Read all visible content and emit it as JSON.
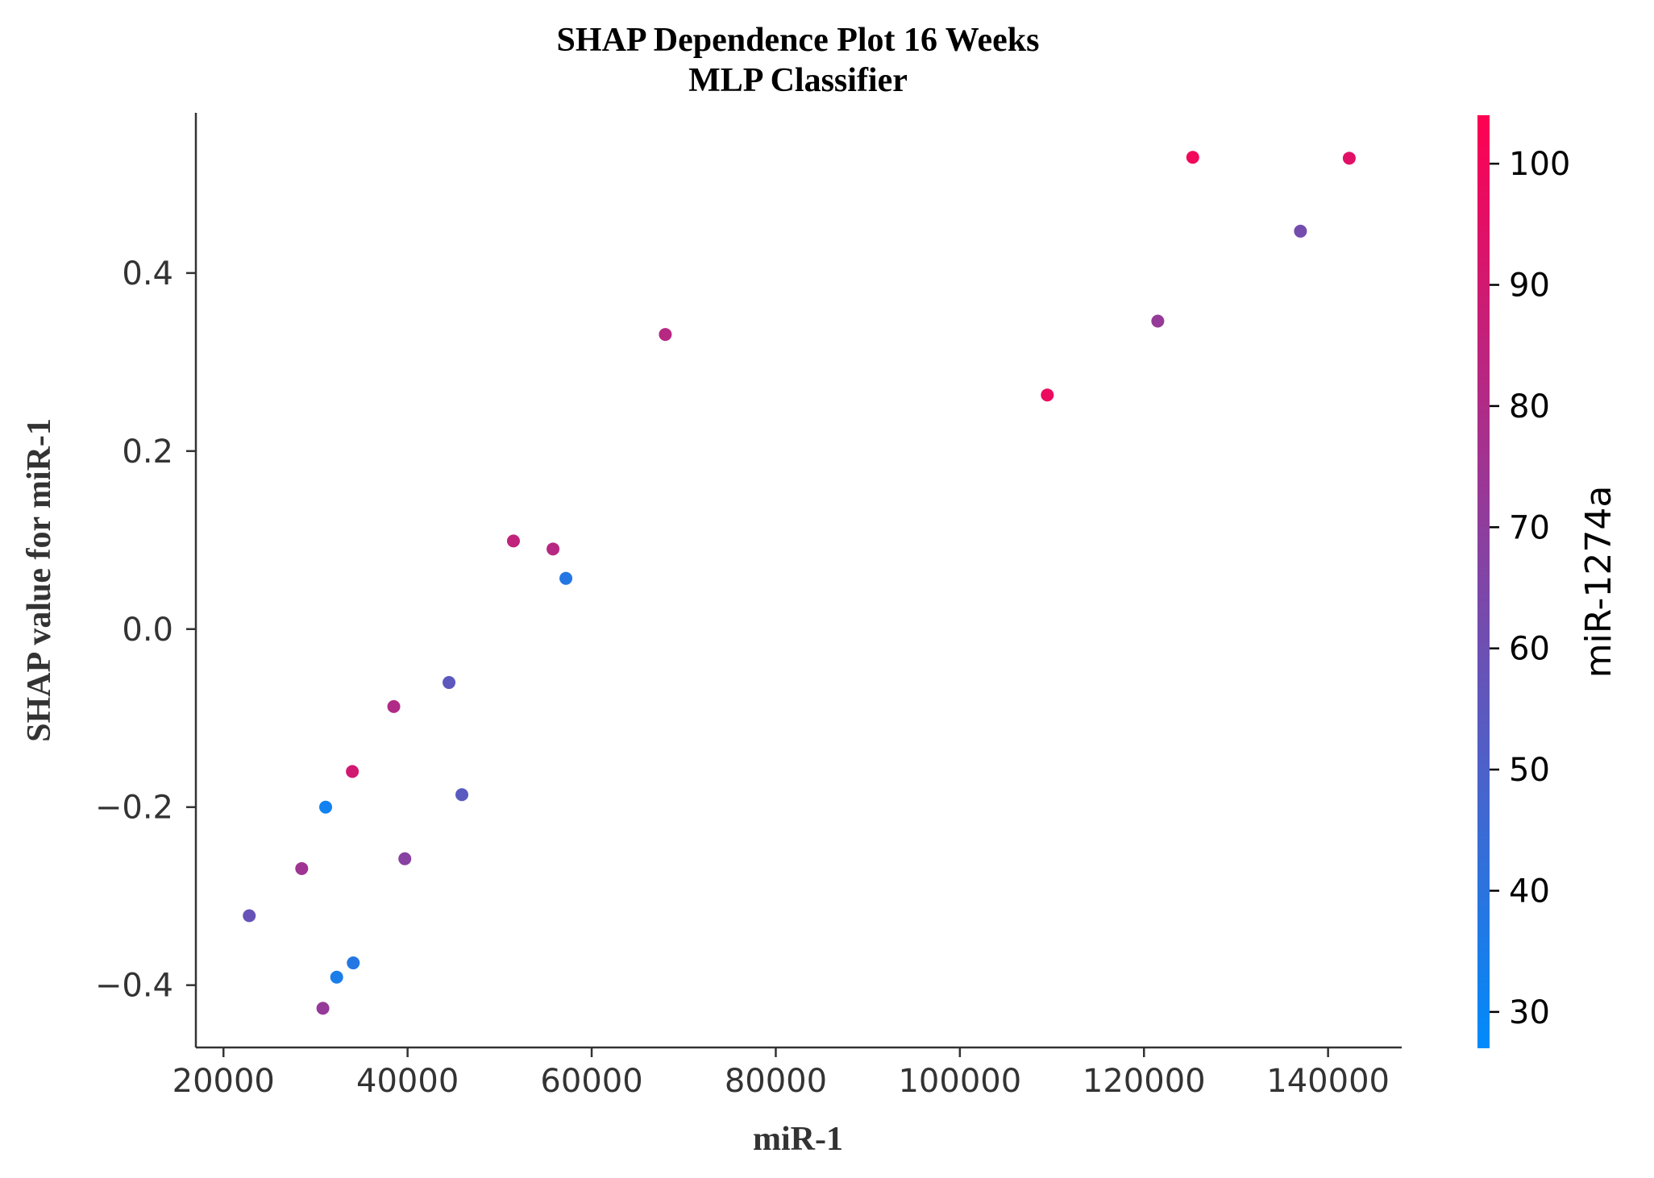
{
  "chart_data": {
    "type": "scatter",
    "title": "SHAP Dependence Plot 16 Weeks",
    "subtitle": "MLP Classifier",
    "xlabel": "miR-1",
    "ylabel": "SHAP value for miR-1",
    "xlim": [
      17000,
      148000
    ],
    "ylim": [
      -0.47,
      0.58
    ],
    "xticks": [
      20000,
      40000,
      60000,
      80000,
      100000,
      120000,
      140000
    ],
    "xtick_labels": [
      "20000",
      "40000",
      "60000",
      "80000",
      "100000",
      "120000",
      "140000"
    ],
    "yticks": [
      -0.4,
      -0.2,
      0.0,
      0.2,
      0.4
    ],
    "ytick_labels": [
      "−0.4",
      "−0.2",
      "0.0",
      "0.2",
      "0.4"
    ],
    "grid": false,
    "colorbar": {
      "label": "miR-1274a",
      "range": [
        27,
        104
      ],
      "ticks": [
        30,
        40,
        50,
        60,
        70,
        80,
        90,
        100
      ],
      "tick_labels": [
        "30",
        "40",
        "50",
        "60",
        "70",
        "80",
        "90",
        "100"
      ],
      "colors": [
        "#008bfb",
        "#ff0052"
      ]
    },
    "points": [
      {
        "x": 125300,
        "y": 0.53,
        "c": 100
      },
      {
        "x": 142300,
        "y": 0.529,
        "c": 95
      },
      {
        "x": 137000,
        "y": 0.447,
        "c": 62
      },
      {
        "x": 121500,
        "y": 0.346,
        "c": 72
      },
      {
        "x": 109500,
        "y": 0.263,
        "c": 98
      },
      {
        "x": 68000,
        "y": 0.331,
        "c": 82
      },
      {
        "x": 51500,
        "y": 0.099,
        "c": 85
      },
      {
        "x": 55800,
        "y": 0.09,
        "c": 82
      },
      {
        "x": 57200,
        "y": 0.057,
        "c": 38
      },
      {
        "x": 44500,
        "y": -0.06,
        "c": 55
      },
      {
        "x": 38500,
        "y": -0.087,
        "c": 80
      },
      {
        "x": 34000,
        "y": -0.16,
        "c": 90
      },
      {
        "x": 45900,
        "y": -0.186,
        "c": 54
      },
      {
        "x": 31100,
        "y": -0.2,
        "c": 32
      },
      {
        "x": 39700,
        "y": -0.258,
        "c": 68
      },
      {
        "x": 28500,
        "y": -0.269,
        "c": 75
      },
      {
        "x": 22800,
        "y": -0.322,
        "c": 58
      },
      {
        "x": 34100,
        "y": -0.375,
        "c": 38
      },
      {
        "x": 32300,
        "y": -0.391,
        "c": 35
      },
      {
        "x": 30800,
        "y": -0.426,
        "c": 72
      }
    ]
  }
}
